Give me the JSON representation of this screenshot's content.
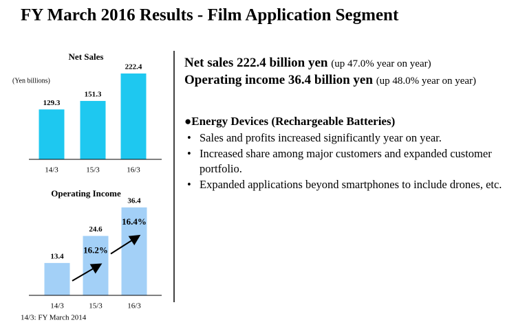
{
  "title": "FY March 2016 Results - Film Application Segment",
  "chart_data": [
    {
      "type": "bar",
      "title": "Net Sales",
      "unit_label": "(Yen billions)",
      "categories": [
        "14/3",
        "15/3",
        "16/3"
      ],
      "values": [
        129.3,
        151.3,
        222.4
      ],
      "color": "#1ec8f0"
    },
    {
      "type": "bar",
      "title": "Operating Income",
      "categories": [
        "14/3",
        "15/3",
        "16/3"
      ],
      "values": [
        13.4,
        24.6,
        36.4
      ],
      "color": "#a3d0f7",
      "annotations": [
        "16.2%",
        "16.4%"
      ]
    }
  ],
  "footnote": "14/3: FY March 2014",
  "highlights": [
    {
      "main": "Net sales 222.4 billion yen",
      "note": "(up 47.0% year on year)"
    },
    {
      "main": "Operating income 36.4 billion yen",
      "note": "(up 48.0% year on year)"
    }
  ],
  "section": {
    "heading": "●Energy Devices (Rechargeable Batteries)",
    "bullets": [
      "Sales and profits increased significantly year on year.",
      "Increased share among major customers and expanded customer portfolio.",
      "Expanded applications beyond smartphones to include drones, etc."
    ]
  }
}
